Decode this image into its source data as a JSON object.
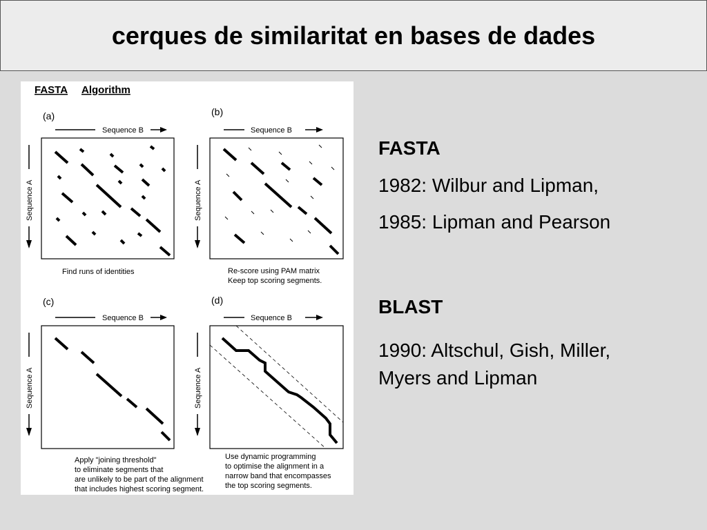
{
  "slide": {
    "title": "cerques de similaritat en bases de dades"
  },
  "figure": {
    "heading_word1": "FASTA",
    "heading_word2": "Algorithm",
    "seq_b": "Sequence B",
    "seq_a": "Sequence A",
    "panels": [
      {
        "label": "(a)",
        "caption": [
          "Find runs of identities"
        ]
      },
      {
        "label": "(b)",
        "caption": [
          "Re-score using PAM matrix",
          "Keep top scoring segments."
        ]
      },
      {
        "label": "(c)",
        "caption": [
          "Apply \"joining threshold\"",
          "to eliminate segments that",
          "are unlikely to be part of the alignment",
          "that includes highest scoring segment."
        ]
      },
      {
        "label": "(d)",
        "caption": [
          "Use dynamic programming",
          "to optimise the alignment in a",
          "narrow band that encompasses",
          "the top scoring segments."
        ]
      }
    ]
  },
  "side": {
    "fasta_heading": "FASTA",
    "fasta_line1": "1982: Wilbur and Lipman,",
    "fasta_line2": "1985: Lipman and Pearson",
    "blast_heading": "BLAST",
    "blast_line1": "1990: Altschul, Gish, Miller,",
    "blast_line2": "Myers and Lipman"
  }
}
